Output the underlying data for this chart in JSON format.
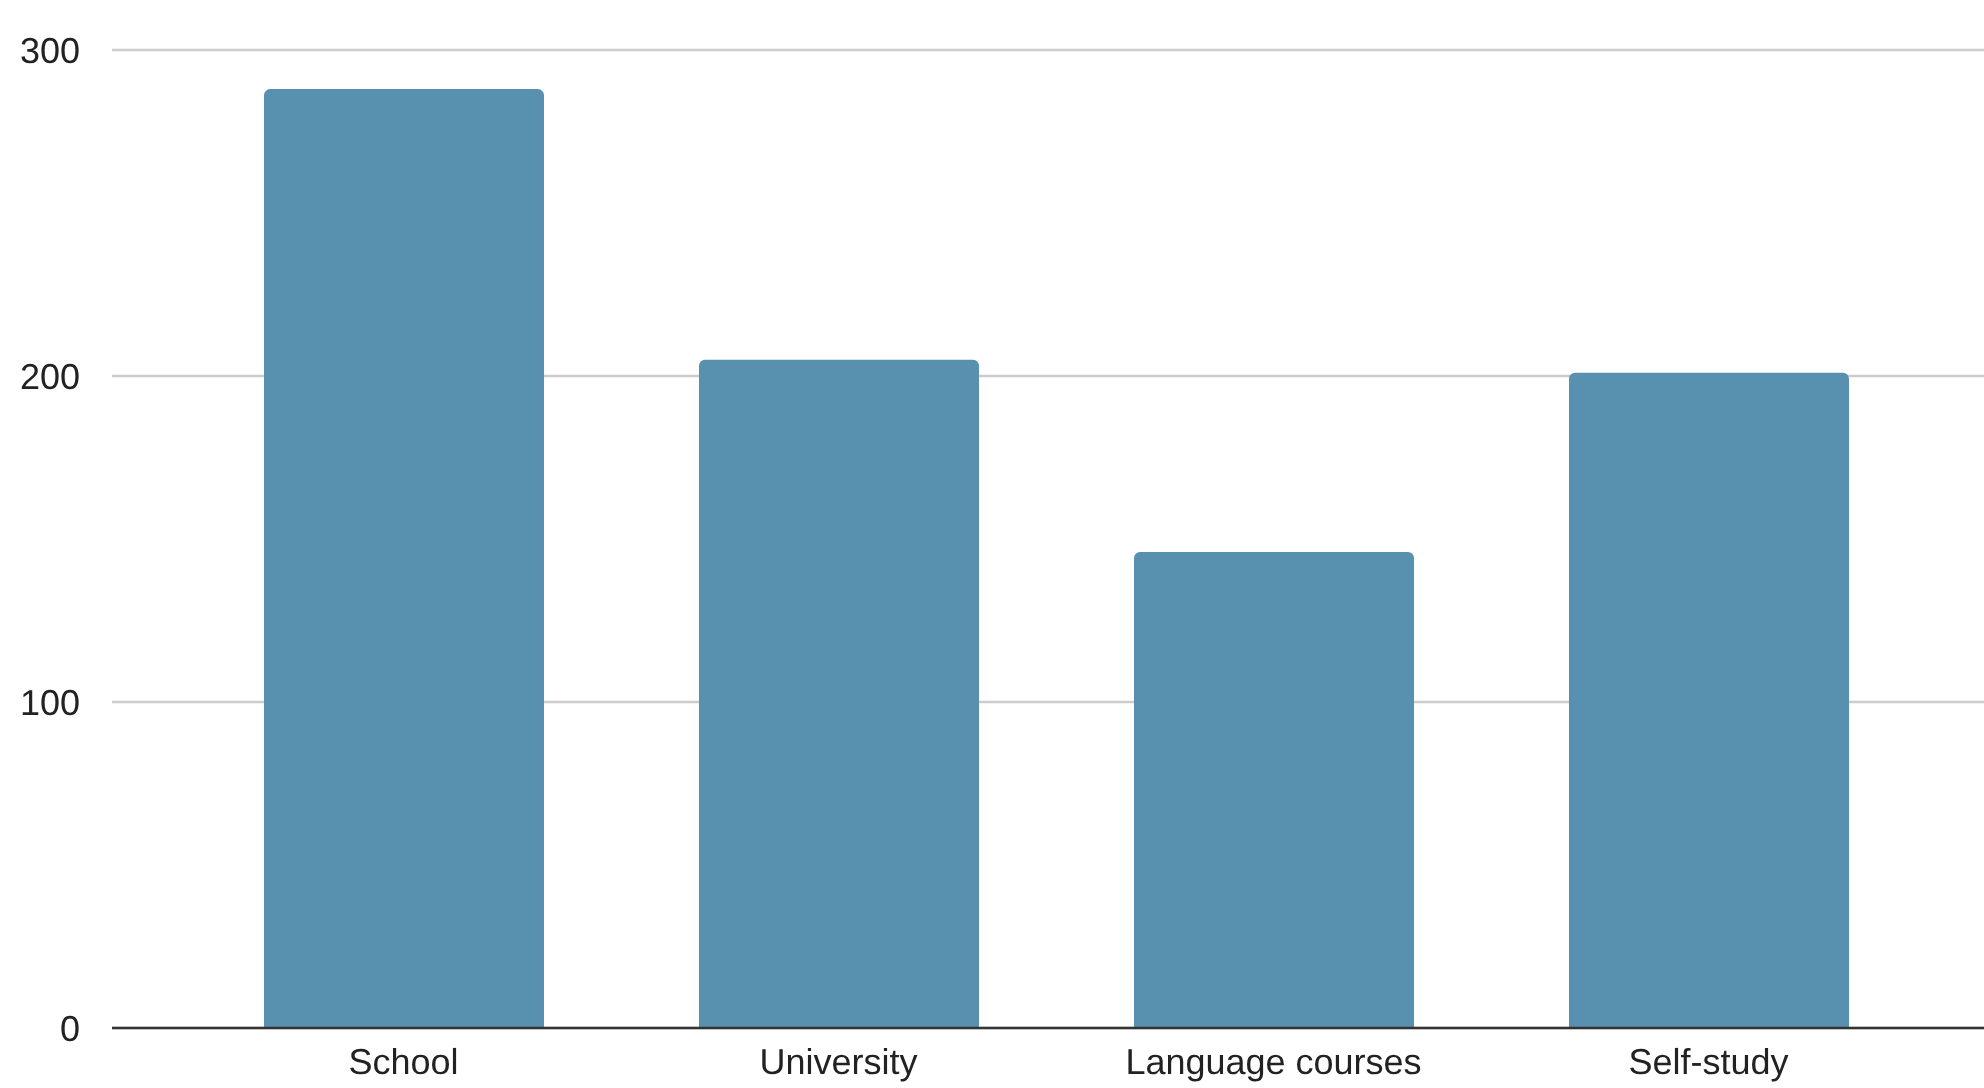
{
  "chart_data": {
    "type": "bar",
    "categories": [
      "School",
      "University",
      "Language courses",
      "Self-study"
    ],
    "values": [
      288,
      205,
      146,
      201
    ],
    "color": "#5891af",
    "ylim": [
      0,
      300
    ],
    "yticks": [
      0,
      100,
      200,
      300
    ],
    "grid": "y"
  }
}
